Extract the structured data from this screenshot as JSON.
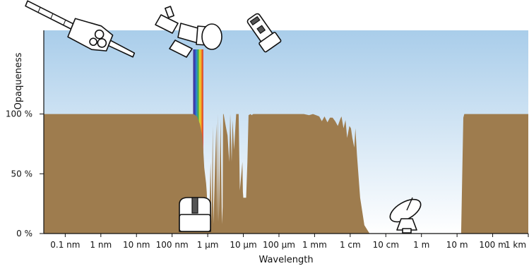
{
  "chart_data": {
    "type": "area",
    "title": "",
    "xlabel": "Wavelength",
    "ylabel": "Opaqueness",
    "x_scale": "log",
    "x_unit": "m",
    "xlim": [
      2.5e-11,
      1000
    ],
    "ylim": [
      0,
      170
    ],
    "grid": false,
    "legend": "none",
    "x_ticks": [
      {
        "value": 1e-10,
        "label": "0.1 nm"
      },
      {
        "value": 1e-09,
        "label": "1 nm"
      },
      {
        "value": 1e-08,
        "label": "10 nm"
      },
      {
        "value": 1e-07,
        "label": "100 nm"
      },
      {
        "value": 1e-06,
        "label": "1 µm"
      },
      {
        "value": 1e-05,
        "label": "10 µm"
      },
      {
        "value": 0.0001,
        "label": "100 µm"
      },
      {
        "value": 0.001,
        "label": "1 mm"
      },
      {
        "value": 0.01,
        "label": "1 cm"
      },
      {
        "value": 0.1,
        "label": "10 cm"
      },
      {
        "value": 1,
        "label": "1 m"
      },
      {
        "value": 10,
        "label": "10 m"
      },
      {
        "value": 100,
        "label": "100 m"
      },
      {
        "value": 1000,
        "label": "1 km"
      }
    ],
    "y_ticks": [
      {
        "value": 0,
        "label": "0 %"
      },
      {
        "value": 50,
        "label": "50 %"
      },
      {
        "value": 100,
        "label": "100 %"
      }
    ],
    "series": [
      {
        "x": [
          2.5e-11,
          4e-07,
          5e-07,
          6e-07,
          7e-07,
          7.5e-07,
          8e-07,
          9e-07,
          9.4e-07,
          9.8e-07,
          1.1e-06,
          1.2e-06,
          1.3e-06,
          1.38e-06,
          1.45e-06,
          1.6e-06,
          1.75e-06,
          1.85e-06,
          1.95e-06,
          2.05e-06,
          2.3e-06,
          2.5e-06,
          2.62e-06,
          2.7e-06,
          2.8e-06,
          3.2e-06,
          3.6e-06,
          4e-06,
          4.3e-06,
          4.7e-06,
          5e-06,
          5.5e-06,
          6.3e-06,
          7.4e-06,
          8e-06,
          9.4e-06,
          9.7e-06,
          1e-05,
          1.2e-05,
          1.3e-05,
          1.4e-05,
          1.6e-05,
          1.7e-05,
          1.9e-05,
          2e-05,
          2.05e-05,
          2.5e-05,
          3.5e-05,
          4e-05,
          6e-05,
          0.0001,
          0.0003,
          0.0005,
          0.0007,
          0.0009,
          0.0011,
          0.00135,
          0.0016,
          0.0019,
          0.0023,
          0.0027,
          0.0032,
          0.0038,
          0.0045,
          0.0053,
          0.0057,
          0.0065,
          0.0074,
          0.0082,
          0.0095,
          0.0105,
          0.0115,
          0.013,
          0.014,
          0.0155,
          0.019,
          0.025,
          0.035,
          0.1,
          1,
          10,
          13,
          15,
          16,
          20,
          100,
          1000
        ],
        "y": [
          100,
          100,
          98,
          92,
          82,
          70,
          55,
          42,
          35,
          22,
          8,
          60,
          10,
          90,
          8,
          55,
          92,
          10,
          100,
          10,
          96,
          8,
          22,
          100,
          100,
          90,
          82,
          60,
          100,
          60,
          95,
          70,
          100,
          100,
          36,
          60,
          35,
          30,
          30,
          60,
          99,
          100,
          99,
          100,
          100,
          100,
          100,
          100,
          100,
          100,
          100,
          100,
          100,
          99,
          100,
          99,
          98,
          94,
          98,
          93,
          97,
          97,
          94,
          90,
          96,
          98,
          88,
          95,
          80,
          90,
          88,
          80,
          72,
          88,
          66,
          30,
          7,
          0,
          0,
          0,
          0,
          0,
          97,
          100,
          100,
          100,
          100
        ]
      }
    ],
    "colors": {
      "atmosphere": "#9e7c4e",
      "sky_top": "#a9cdea",
      "sky_bottom": "#ffffff"
    },
    "annotations": [
      {
        "name": "x-ray-satellite-icon",
        "wavelength": 1e-10
      },
      {
        "name": "space-telescope-icon",
        "wavelength": 1e-06
      },
      {
        "name": "infrared-satellite-icon",
        "wavelength": 0.0001
      },
      {
        "name": "ground-optical-telescope-icon",
        "wavelength": 6e-07
      },
      {
        "name": "radio-dish-icon",
        "wavelength": 1
      }
    ]
  }
}
